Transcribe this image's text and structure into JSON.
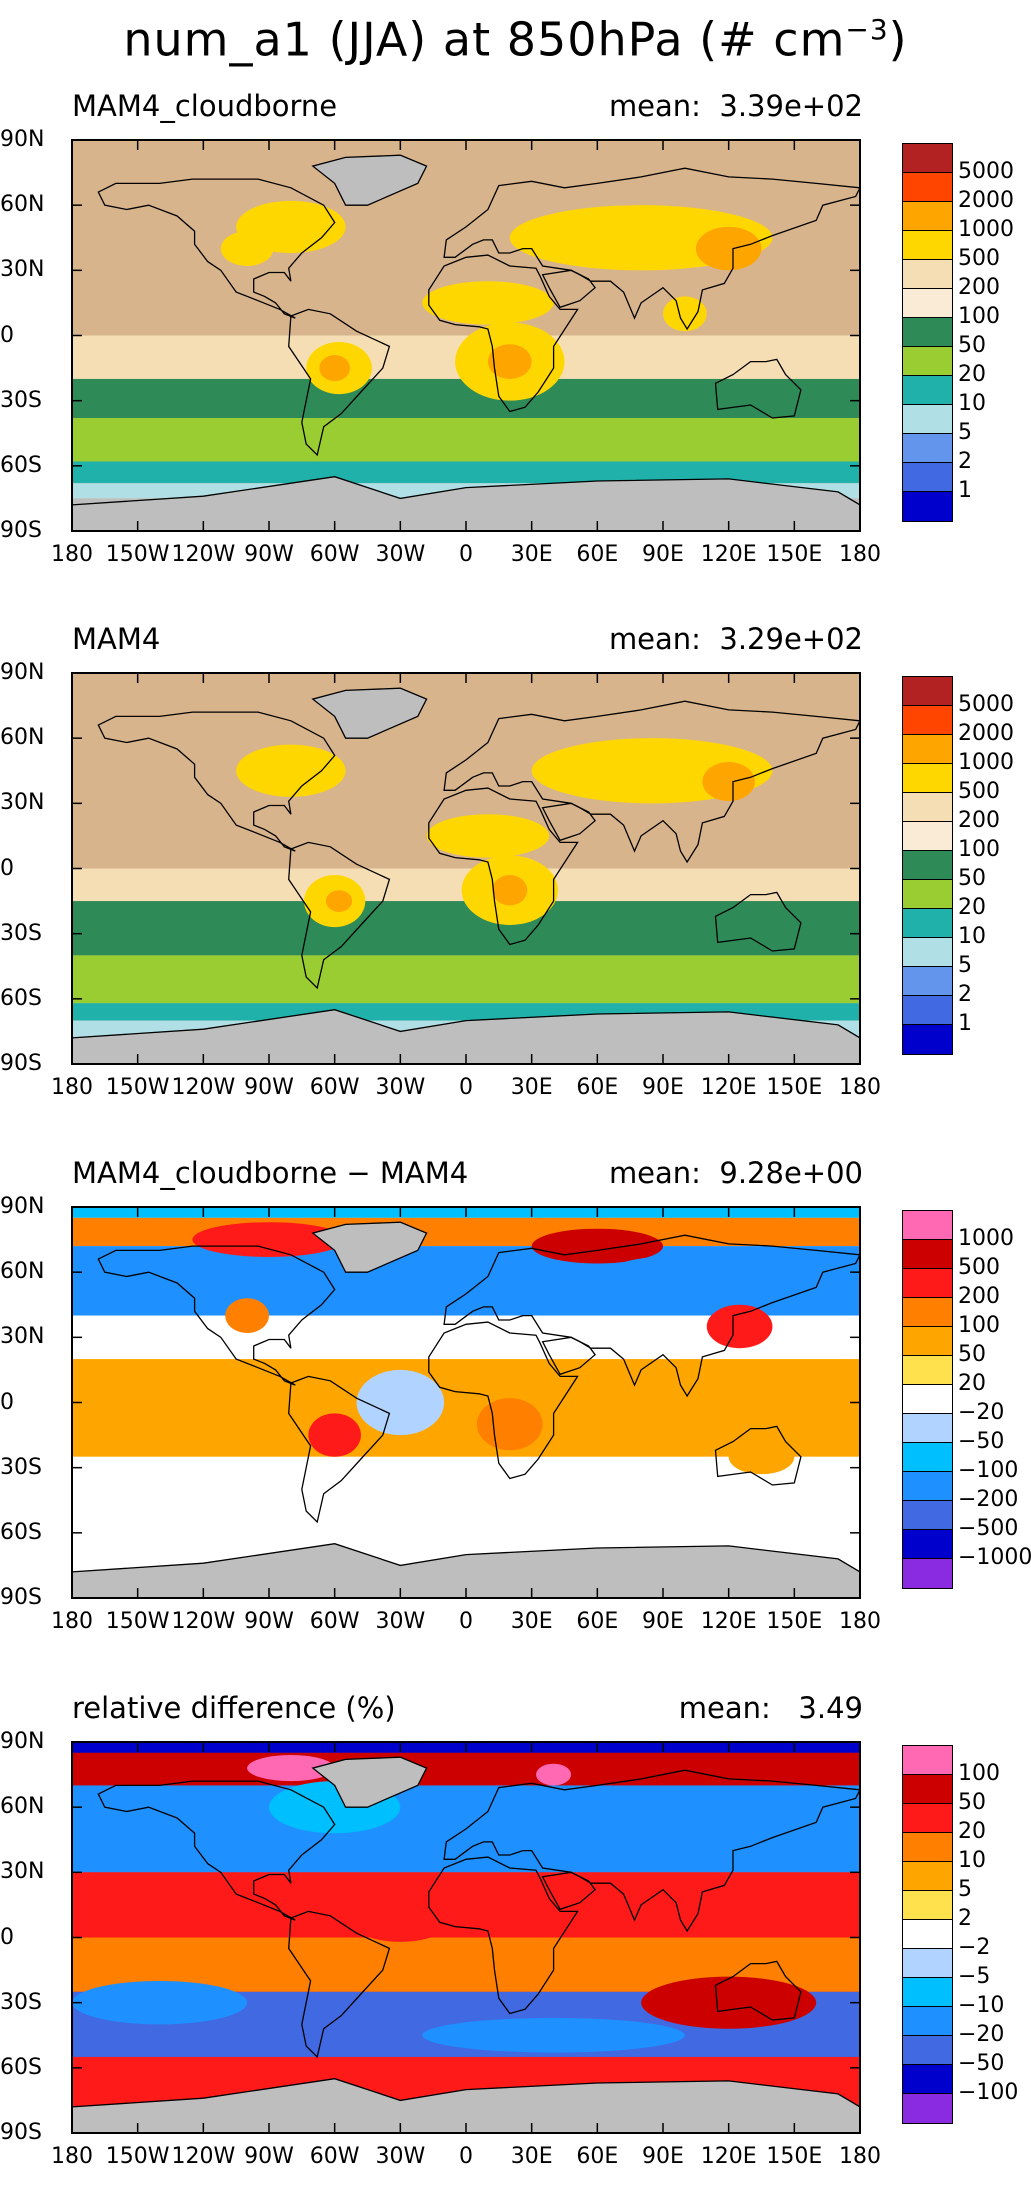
{
  "figure": {
    "title_main": "num_a1 (JJA) at 850hPa (# cm",
    "title_exp": "−3",
    "title_close": ")"
  },
  "axes": {
    "y_ticks": [
      "90N",
      "60N",
      "30N",
      "0",
      "30S",
      "60S",
      "90S"
    ],
    "x_ticks": [
      "180",
      "150W",
      "120W",
      "90W",
      "60W",
      "30W",
      "0",
      "30E",
      "60E",
      "90E",
      "120E",
      "150E",
      "180"
    ]
  },
  "map_colors": {
    "land_missing": "#bebebe",
    "coastline": "#000000"
  },
  "panels": [
    {
      "title": "MAM4_cloudborne",
      "mean": "mean:  3.39e+02",
      "legend_colors": [
        "#b22222",
        "#ff4500",
        "#ffa500",
        "#ffd700",
        "#f5deb3",
        "#faebd7",
        "#2e8b57",
        "#9acd32",
        "#20b2aa",
        "#b0e0e6",
        "#6495ed",
        "#4169e1",
        "#0000cd"
      ],
      "legend_labels": [
        "5000",
        "2000",
        "1000",
        "500",
        "200",
        "100",
        "50",
        "20",
        "10",
        "5",
        "2",
        "1"
      ],
      "background": "#d8b48c",
      "bands": [
        {
          "lat": [
            90,
            75
          ],
          "color": "#d8b48c"
        },
        {
          "lat": [
            75,
            0
          ],
          "color": "#d8b48c"
        },
        {
          "lat": [
            0,
            -20
          ],
          "color": "#f5deb3"
        },
        {
          "lat": [
            -20,
            -38
          ],
          "color": "#2e8b57"
        },
        {
          "lat": [
            -38,
            -58
          ],
          "color": "#9acd32"
        },
        {
          "lat": [
            -58,
            -68
          ],
          "color": "#20b2aa"
        },
        {
          "lat": [
            -68,
            -75
          ],
          "color": "#b0e0e6"
        },
        {
          "lat": [
            -75,
            -90
          ],
          "color": "#bebebe"
        }
      ]
    },
    {
      "title": "MAM4",
      "mean": "mean:  3.29e+02",
      "legend_colors": [
        "#b22222",
        "#ff4500",
        "#ffa500",
        "#ffd700",
        "#f5deb3",
        "#faebd7",
        "#2e8b57",
        "#9acd32",
        "#20b2aa",
        "#b0e0e6",
        "#6495ed",
        "#4169e1",
        "#0000cd"
      ],
      "legend_labels": [
        "5000",
        "2000",
        "1000",
        "500",
        "200",
        "100",
        "50",
        "20",
        "10",
        "5",
        "2",
        "1"
      ],
      "background": "#d8b48c",
      "bands": [
        {
          "lat": [
            90,
            0
          ],
          "color": "#d8b48c"
        },
        {
          "lat": [
            0,
            -15
          ],
          "color": "#f5deb3"
        },
        {
          "lat": [
            -15,
            -40
          ],
          "color": "#2e8b57"
        },
        {
          "lat": [
            -40,
            -62
          ],
          "color": "#9acd32"
        },
        {
          "lat": [
            -62,
            -70
          ],
          "color": "#20b2aa"
        },
        {
          "lat": [
            -70,
            -78
          ],
          "color": "#b0e0e6"
        },
        {
          "lat": [
            -78,
            -90
          ],
          "color": "#bebebe"
        }
      ]
    },
    {
      "title": "MAM4_cloudborne − MAM4",
      "mean": "mean:  9.28e+00",
      "legend_colors": [
        "#ff69b4",
        "#cd0000",
        "#ff1a1a",
        "#ff7f00",
        "#ffa500",
        "#ffe14d",
        "#ffffff",
        "#b0d4ff",
        "#00bfff",
        "#1e90ff",
        "#4169e1",
        "#0000cd",
        "#8a2be2"
      ],
      "legend_labels": [
        "1000",
        "500",
        "200",
        "100",
        "50",
        "20",
        "−20",
        "−50",
        "−100",
        "−200",
        "−500",
        "−1000"
      ],
      "background": "#ffffff",
      "bands": [
        {
          "lat": [
            90,
            85
          ],
          "color": "#00bfff"
        },
        {
          "lat": [
            85,
            72
          ],
          "color": "#ff7f00"
        },
        {
          "lat": [
            72,
            40
          ],
          "color": "#1e90ff"
        },
        {
          "lat": [
            40,
            20
          ],
          "color": "#ffffff"
        },
        {
          "lat": [
            20,
            -25
          ],
          "color": "#ffa500"
        },
        {
          "lat": [
            -25,
            -80
          ],
          "color": "#ffffff"
        },
        {
          "lat": [
            -80,
            -90
          ],
          "color": "#bebebe"
        }
      ]
    },
    {
      "title": "relative difference (%)",
      "mean": "mean:   3.49",
      "legend_colors": [
        "#ff69b4",
        "#cd0000",
        "#ff1a1a",
        "#ff7f00",
        "#ffa500",
        "#ffe14d",
        "#ffffff",
        "#b0d4ff",
        "#00bfff",
        "#1e90ff",
        "#4169e1",
        "#0000cd",
        "#8a2be2"
      ],
      "legend_labels": [
        "100",
        "50",
        "20",
        "10",
        "5",
        "2",
        "−2",
        "−5",
        "−10",
        "−20",
        "−50",
        "−100"
      ],
      "background": "#ff1a1a",
      "bands": [
        {
          "lat": [
            90,
            85
          ],
          "color": "#0000cd"
        },
        {
          "lat": [
            85,
            70
          ],
          "color": "#cd0000"
        },
        {
          "lat": [
            70,
            30
          ],
          "color": "#1e90ff"
        },
        {
          "lat": [
            30,
            0
          ],
          "color": "#ff1a1a"
        },
        {
          "lat": [
            0,
            -25
          ],
          "color": "#ff7f00"
        },
        {
          "lat": [
            -25,
            -55
          ],
          "color": "#4169e1"
        },
        {
          "lat": [
            -55,
            -78
          ],
          "color": "#ff1a1a"
        },
        {
          "lat": [
            -78,
            -90
          ],
          "color": "#bebebe"
        }
      ]
    }
  ]
}
